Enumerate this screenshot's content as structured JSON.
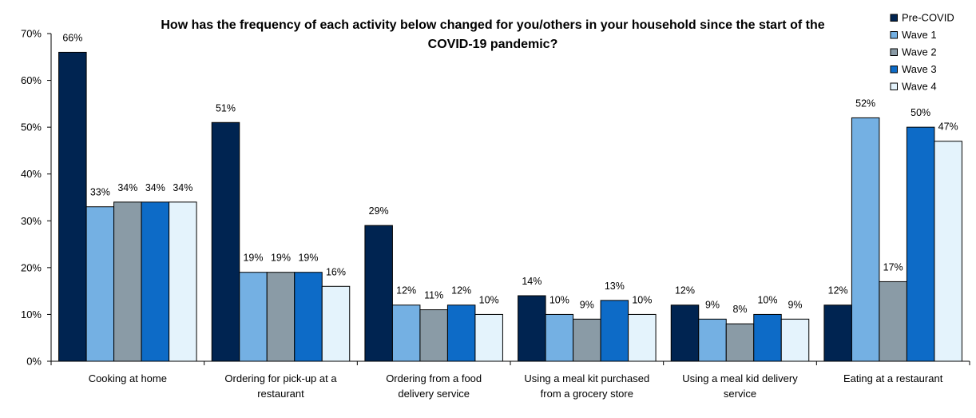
{
  "chart_data": {
    "type": "bar",
    "title_lines": [
      "How has the frequency of each activity below changed for you/others in your household since the start of the",
      "COVID-19 pandemic?"
    ],
    "categories": [
      [
        "Cooking at home"
      ],
      [
        "Ordering for pick-up at a",
        "restaurant"
      ],
      [
        "Ordering from a food",
        "delivery service"
      ],
      [
        "Using a meal kit purchased",
        "from a grocery store"
      ],
      [
        "Using a meal kid delivery",
        "service"
      ],
      [
        "Eating at a restaurant"
      ]
    ],
    "series": [
      {
        "name": "Pre-COVID",
        "color": "#002451",
        "values": [
          66,
          51,
          29,
          14,
          12,
          12
        ]
      },
      {
        "name": "Wave 1",
        "color": "#74b0e3",
        "values": [
          33,
          19,
          12,
          10,
          9,
          52
        ]
      },
      {
        "name": "Wave 2",
        "color": "#8a9ba6",
        "values": [
          34,
          19,
          11,
          9,
          8,
          17
        ]
      },
      {
        "name": "Wave 3",
        "color": "#0d6bc7",
        "values": [
          34,
          19,
          12,
          13,
          10,
          50
        ]
      },
      {
        "name": "Wave 4",
        "color": "#e4f3fc",
        "values": [
          34,
          16,
          10,
          10,
          9,
          47
        ]
      }
    ],
    "ylim": [
      0,
      70
    ],
    "yticks": [
      "0%",
      "10%",
      "20%",
      "30%",
      "40%",
      "50%",
      "60%",
      "70%"
    ],
    "value_suffix": "%",
    "grid": false,
    "legend_position": "top-right"
  }
}
